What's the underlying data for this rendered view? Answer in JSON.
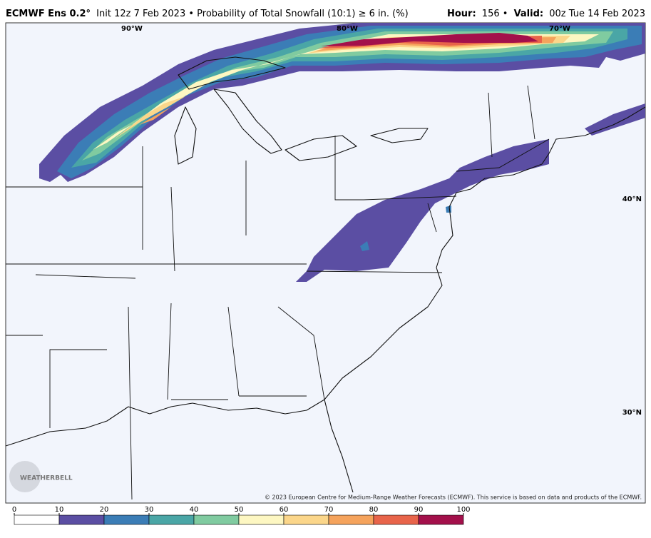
{
  "header": {
    "model": "ECMWF Ens 0.2°",
    "title": "Init 12z 7 Feb 2023 • Probability of Total Snowfall (10:1) ≥ 6 in. (%)",
    "hour_label": "Hour:",
    "hour": "156 •",
    "valid_label": "Valid:",
    "valid": "00z Tue 14 Feb 2023"
  },
  "map": {
    "lon_labels": [
      "90°W",
      "80°W",
      "70°W"
    ],
    "lat_labels": [
      "40°N",
      "30°N"
    ],
    "logo": "WEATHERBELL",
    "credit": "© 2023 European Centre for Medium-Range Weather Forecasts (ECMWF). This service is based on data and products of the ECMWF."
  },
  "colorbar": {
    "ticks": [
      0,
      10,
      20,
      30,
      40,
      50,
      60,
      70,
      80,
      90,
      100
    ],
    "colors": [
      "#ffffff",
      "#5b4ea3",
      "#3b7db6",
      "#4aa6a6",
      "#80cba0",
      "#fdf7c2",
      "#fbd68a",
      "#f5a35c",
      "#e8644a",
      "#a3104b"
    ]
  }
}
